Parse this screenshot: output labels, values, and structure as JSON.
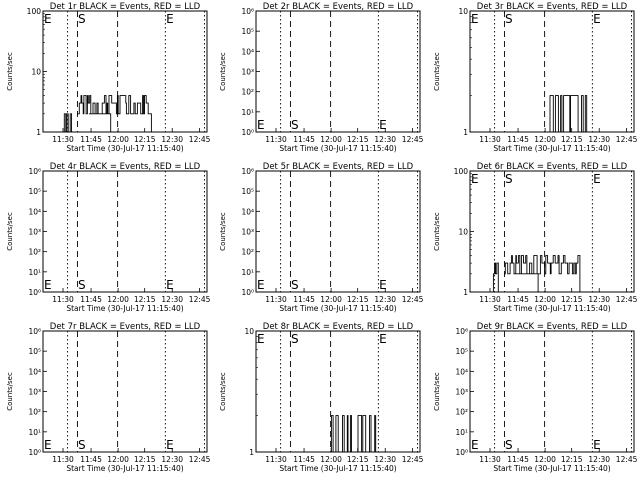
{
  "page": {
    "background": "#ffffff",
    "foreground": "#000000"
  },
  "chart_data": [
    {
      "type": "line",
      "title": "Det 1r BLACK = Events, RED = LLD",
      "xlabel": "Start Time (30-Jul-17 11:15:40)",
      "ylabel": "Counts/sec",
      "x_ticks": [
        "11:30",
        "11:45",
        "12:00",
        "12:15",
        "12:30",
        "12:45"
      ],
      "y_scale": "log",
      "ylim": [
        1,
        100
      ],
      "y_ticks": [
        "1",
        "10",
        "100"
      ],
      "markers": [
        "E",
        "S",
        "E"
      ],
      "series": [
        {
          "values_profile": "low_activity",
          "x": [
            1,
            40
          ],
          "y": [
            1,
            3
          ]
        }
      ]
    },
    {
      "type": "line",
      "title": "Det 2r BLACK = Events, RED = LLD",
      "xlabel": "Start Time (30-Jul-17 11:15:40)",
      "ylabel": "Counts/sec",
      "x_ticks": [
        "11:30",
        "11:45",
        "12:00",
        "12:15",
        "12:30",
        "12:45"
      ],
      "y_scale": "log",
      "ylim": [
        1,
        1000000
      ],
      "y_ticks": [
        "10⁰",
        "10¹",
        "10²",
        "10³",
        "10⁴",
        "10⁵",
        "10⁶"
      ],
      "markers": [
        "E",
        "S",
        "E"
      ],
      "series": []
    },
    {
      "type": "line",
      "title": "Det 3r BLACK = Events, RED = LLD",
      "xlabel": "Start Time (30-Jul-17 11:15:40)",
      "ylabel": "Counts/sec",
      "x_ticks": [
        "11:30",
        "11:45",
        "12:00",
        "12:15",
        "12:30",
        "12:45"
      ],
      "y_scale": "log",
      "ylim": [
        1,
        10
      ],
      "y_ticks": [
        "1",
        "10"
      ],
      "markers": [
        "E",
        "S",
        "E"
      ],
      "series": [
        {
          "x": [
            1,
            2
          ],
          "y": [
            1,
            2
          ]
        }
      ]
    },
    {
      "type": "line",
      "title": "Det 4r BLACK = Events, RED = LLD",
      "xlabel": "Start Time (30-Jul-17 11:15:40)",
      "ylabel": "Counts/sec",
      "x_ticks": [
        "11:30",
        "11:45",
        "12:00",
        "12:15",
        "12:30",
        "12:45"
      ],
      "y_scale": "log",
      "ylim": [
        1,
        1000000
      ],
      "y_ticks": [
        "10⁰",
        "10¹",
        "10²",
        "10³",
        "10⁴",
        "10⁵",
        "10⁶"
      ],
      "markers": [
        "E",
        "S",
        "E"
      ],
      "series": []
    },
    {
      "type": "line",
      "title": "Det 5r BLACK = Events, RED = LLD",
      "xlabel": "Start Time (30-Jul-17 11:15:40)",
      "ylabel": "Counts/sec",
      "x_ticks": [
        "11:30",
        "11:45",
        "12:00",
        "12:15",
        "12:30",
        "12:45"
      ],
      "y_scale": "log",
      "ylim": [
        1,
        1000000
      ],
      "y_ticks": [
        "10⁰",
        "10¹",
        "10²",
        "10³",
        "10⁴",
        "10⁵",
        "10⁶"
      ],
      "markers": [
        "E",
        "S",
        "E"
      ],
      "series": []
    },
    {
      "type": "line",
      "title": "Det 6r BLACK = Events, RED = LLD",
      "xlabel": "Start Time (30-Jul-17 11:15:40)",
      "ylabel": "Counts/sec",
      "x_ticks": [
        "11:30",
        "11:45",
        "12:00",
        "12:15",
        "12:30",
        "12:45"
      ],
      "y_scale": "log",
      "ylim": [
        1,
        100
      ],
      "y_ticks": [
        "1",
        "10",
        "100"
      ],
      "markers": [
        "E",
        "S",
        "E"
      ],
      "series": [
        {
          "x": [
            1,
            2
          ],
          "y": [
            1,
            3
          ]
        }
      ]
    },
    {
      "type": "line",
      "title": "Det 7r BLACK = Events, RED = LLD",
      "xlabel": "Start Time (30-Jul-17 11:15:40)",
      "ylabel": "Counts/sec",
      "x_ticks": [
        "11:30",
        "11:45",
        "12:00",
        "12:15",
        "12:30",
        "12:45"
      ],
      "y_scale": "log",
      "ylim": [
        1,
        1000000
      ],
      "y_ticks": [
        "10⁰",
        "10¹",
        "10²",
        "10³",
        "10⁴",
        "10⁵",
        "10⁶"
      ],
      "markers": [
        "E",
        "S",
        "E"
      ],
      "series": []
    },
    {
      "type": "line",
      "title": "Det 8r BLACK = Events, RED = LLD",
      "xlabel": "Start Time (30-Jul-17 11:15:40)",
      "ylabel": "Counts/sec",
      "x_ticks": [
        "11:30",
        "11:45",
        "12:00",
        "12:15",
        "12:30",
        "12:45"
      ],
      "y_scale": "log",
      "ylim": [
        1,
        10
      ],
      "y_ticks": [
        "1",
        "10"
      ],
      "markers": [
        "E",
        "S",
        "E"
      ],
      "series": [
        {
          "x": [
            1,
            2
          ],
          "y": [
            1,
            2
          ]
        }
      ]
    },
    {
      "type": "line",
      "title": "Det 9r BLACK = Events, RED = LLD",
      "xlabel": "Start Time (30-Jul-17 11:15:40)",
      "ylabel": "Counts/sec",
      "x_ticks": [
        "11:30",
        "11:45",
        "12:00",
        "12:15",
        "12:30",
        "12:45"
      ],
      "y_scale": "log",
      "ylim": [
        1,
        1000000
      ],
      "y_ticks": [
        "10⁰",
        "10¹",
        "10²",
        "10³",
        "10⁴",
        "10⁵",
        "10⁶"
      ],
      "markers": [
        "E",
        "S",
        "E"
      ],
      "series": []
    }
  ]
}
